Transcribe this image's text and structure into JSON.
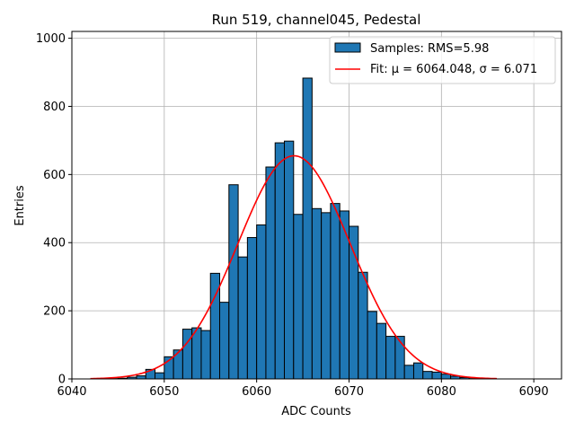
{
  "chart_data": {
    "type": "bar",
    "title": "Run 519, channel045, Pedestal",
    "xlabel": "ADC Counts",
    "ylabel": "Entries",
    "xlim": [
      6040,
      6093
    ],
    "ylim": [
      0,
      1020
    ],
    "grid": true,
    "legend_position": "top-right",
    "xticks": [
      6040,
      6050,
      6060,
      6070,
      6080,
      6090
    ],
    "yticks": [
      0,
      200,
      400,
      600,
      800,
      1000
    ],
    "bin_width": 1,
    "bins": {
      "x": [
        6044,
        6045,
        6046,
        6047,
        6048,
        6049,
        6050,
        6051,
        6052,
        6053,
        6054,
        6055,
        6056,
        6057,
        6058,
        6059,
        6060,
        6061,
        6062,
        6063,
        6064,
        6065,
        6066,
        6067,
        6068,
        6069,
        6070,
        6071,
        6072,
        6073,
        6074,
        6075,
        6076,
        6077,
        6078,
        6079,
        6080,
        6081,
        6082,
        6083
      ],
      "values": [
        1,
        2,
        5,
        9,
        28,
        18,
        65,
        85,
        146,
        150,
        142,
        310,
        225,
        570,
        358,
        415,
        452,
        622,
        693,
        698,
        483,
        883,
        500,
        488,
        515,
        493,
        448,
        313,
        198,
        163,
        125,
        125,
        40,
        47,
        22,
        20,
        14,
        8,
        4,
        1
      ]
    },
    "fit": {
      "mu": 6064.048,
      "sigma": 6.071,
      "amplitude": 655,
      "x_range": [
        6042,
        6086
      ]
    },
    "series": [
      {
        "name": "Samples: RMS=5.98",
        "color": "#1f77b4",
        "kind": "histogram"
      },
      {
        "name": "Fit: μ = 6064.048, σ = 6.071",
        "color": "#ff0000",
        "kind": "line"
      }
    ]
  }
}
